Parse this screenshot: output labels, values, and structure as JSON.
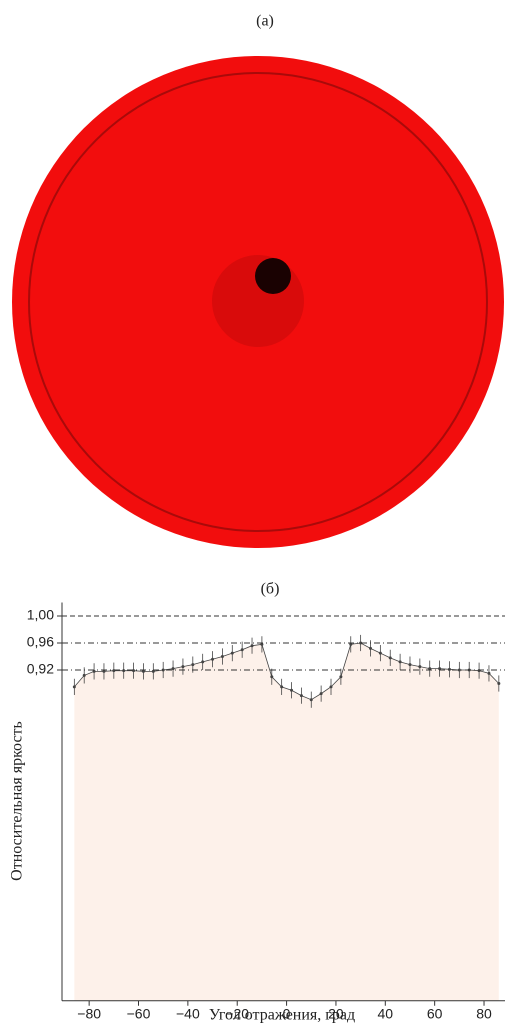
{
  "panel_a": {
    "label": "(а)"
  },
  "chart_data": {
    "type": "errorbar",
    "title": "(б)",
    "x_label": "Угол отражения, град",
    "y_label": "Относительная яркость",
    "x": [
      -86,
      -82,
      -78,
      -74,
      -70,
      -66,
      -62,
      -58,
      -54,
      -50,
      -46,
      -42,
      -38,
      -34,
      -30,
      -26,
      -22,
      -18,
      -14,
      -10,
      -6,
      -2,
      2,
      6,
      10,
      14,
      18,
      22,
      26,
      30,
      34,
      38,
      42,
      46,
      50,
      54,
      58,
      62,
      66,
      70,
      74,
      78,
      82,
      86
    ],
    "series": [
      {
        "color": "#444444",
        "fill": "#fdf1ea",
        "values": [
          0.895,
          0.912,
          0.918,
          0.918,
          0.919,
          0.919,
          0.919,
          0.918,
          0.918,
          0.92,
          0.922,
          0.925,
          0.928,
          0.932,
          0.936,
          0.94,
          0.945,
          0.95,
          0.956,
          0.958,
          0.91,
          0.895,
          0.89,
          0.882,
          0.876,
          0.885,
          0.895,
          0.91,
          0.958,
          0.96,
          0.952,
          0.945,
          0.938,
          0.932,
          0.928,
          0.925,
          0.922,
          0.922,
          0.921,
          0.92,
          0.92,
          0.919,
          0.915,
          0.9
        ],
        "errors": [
          0.012,
          0.012,
          0.012,
          0.012,
          0.012,
          0.012,
          0.012,
          0.012,
          0.012,
          0.012,
          0.012,
          0.012,
          0.012,
          0.012,
          0.012,
          0.012,
          0.012,
          0.012,
          0.012,
          0.012,
          0.012,
          0.012,
          0.012,
          0.012,
          0.012,
          0.012,
          0.012,
          0.012,
          0.012,
          0.012,
          0.012,
          0.012,
          0.012,
          0.012,
          0.012,
          0.012,
          0.012,
          0.012,
          0.012,
          0.012,
          0.012,
          0.012,
          0.012,
          0.012
        ]
      }
    ],
    "xlim": [
      -91,
      88.5
    ],
    "ylim": [
      0.43,
      1.02
    ],
    "xticks": [
      {
        "value": -80,
        "label": "−80"
      },
      {
        "value": -60,
        "label": "−60"
      },
      {
        "value": -40,
        "label": "−40"
      },
      {
        "value": -20,
        "label": "−20"
      },
      0,
      20,
      40,
      60,
      80
    ],
    "yticks": [
      {
        "value": 0.92,
        "label": "0,92"
      },
      {
        "value": 0.96,
        "label": "0,96"
      },
      {
        "value": 1,
        "label": "1,00"
      }
    ],
    "grid": true
  }
}
